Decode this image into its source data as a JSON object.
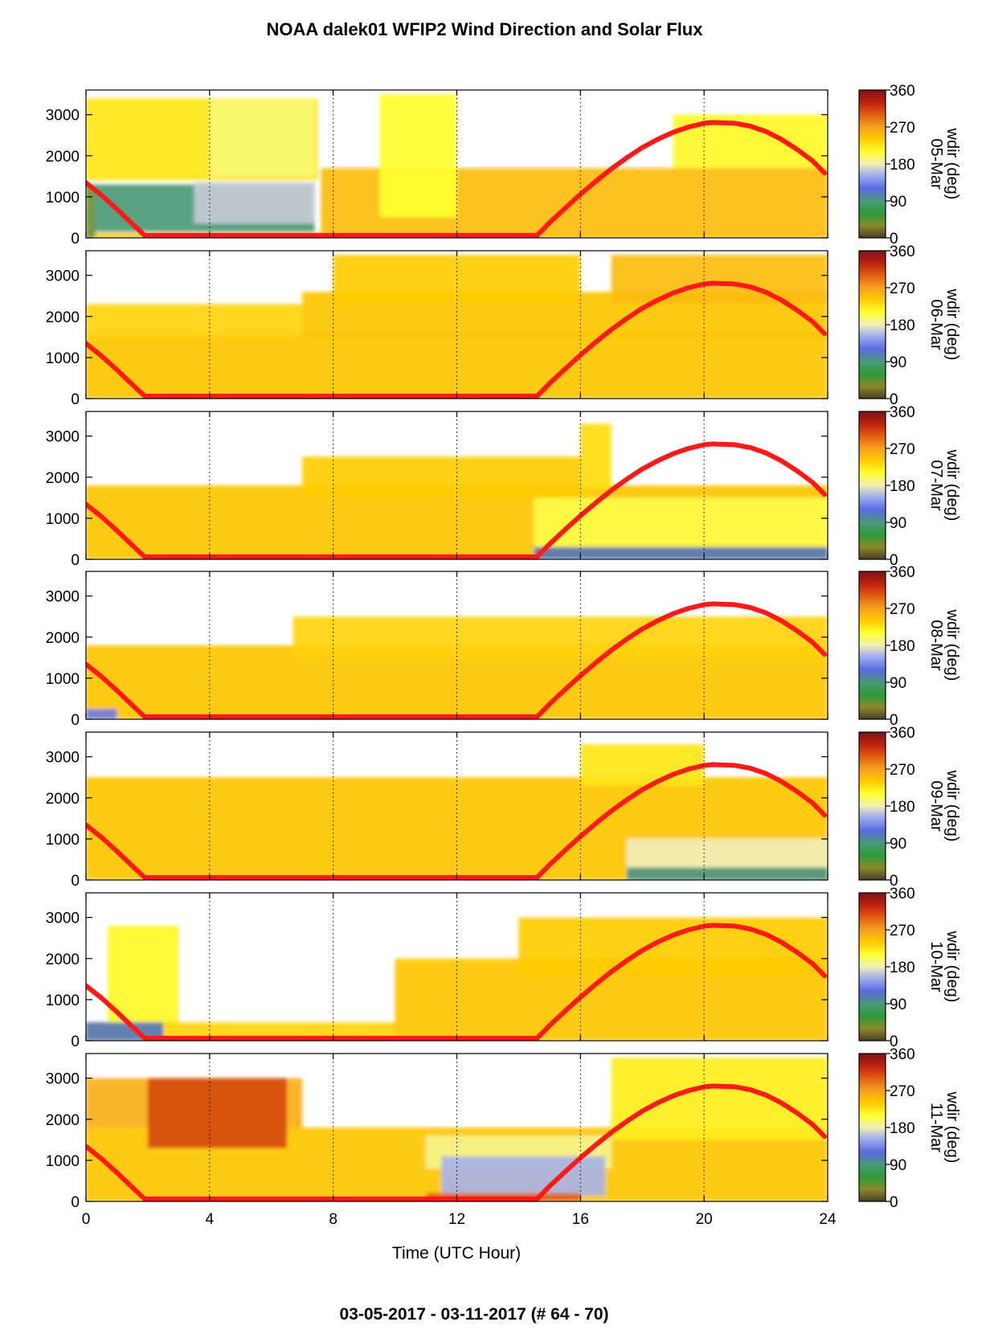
{
  "chart_data": {
    "type": "heatmap",
    "title": "NOAA dalek01 WFIP2 Wind Direction and Solar Flux",
    "footer": "03-05-2017 - 03-11-2017    (# 64 - 70)",
    "xlabel": "Time (UTC Hour)",
    "xlim": [
      0,
      24
    ],
    "xticks": [
      "0",
      "4",
      "8",
      "12",
      "16",
      "20",
      "24"
    ],
    "xtick_values": [
      0,
      4,
      8,
      12,
      16,
      20,
      24
    ],
    "ylim": [
      0,
      3600
    ],
    "yticks": [
      "0",
      "1000",
      "2000",
      "3000"
    ],
    "ytick_values": [
      0,
      1000,
      2000,
      3000
    ],
    "vertical_gridlines": "dotted at 4, 8, 12, 16, 20",
    "colorbar": {
      "label": "wdir (deg)",
      "ticks": [
        "0",
        "90",
        "180",
        "270",
        "360"
      ],
      "tick_values": [
        0,
        90,
        180,
        270,
        360
      ],
      "stops": [
        "#4a3f2a",
        "#8a8a2a",
        "#2e9a3a",
        "#4a9a78",
        "#5a6ae0",
        "#9aa8f0",
        "#f0f0b8",
        "#ffff30",
        "#ffcc00",
        "#f5a020",
        "#e06010",
        "#c02010",
        "#7a1515"
      ]
    },
    "solar_flux_color": "#ff1a1a",
    "solar_flux_curve": {
      "hour": [
        0,
        0.5,
        1,
        1.5,
        1.9,
        2.5,
        4,
        6,
        8,
        10,
        12,
        14,
        14.6,
        15,
        15.5,
        16,
        16.5,
        17,
        17.5,
        18,
        18.5,
        19,
        19.5,
        20,
        20.3,
        21,
        21.5,
        22,
        22.5,
        23,
        23.5,
        23.9
      ],
      "value": [
        1340,
        1040,
        700,
        340,
        60,
        60,
        60,
        60,
        60,
        60,
        60,
        60,
        60,
        370,
        720,
        1060,
        1380,
        1680,
        1950,
        2200,
        2400,
        2570,
        2700,
        2790,
        2810,
        2790,
        2720,
        2590,
        2400,
        2160,
        1880,
        1580
      ]
    },
    "panels": [
      {
        "date": "05-Mar",
        "layers": [
          {
            "t": [
              0,
              24
            ],
            "h": [
              0,
              120
            ],
            "wdir": 245
          },
          {
            "t": [
              0,
              0.3
            ],
            "h": [
              0,
              1300
            ],
            "wdir": 40
          },
          {
            "t": [
              0.3,
              7.4
            ],
            "h": [
              150,
              1300
            ],
            "wdir": 90
          },
          {
            "t": [
              3.5,
              7.4
            ],
            "h": [
              350,
              1350
            ],
            "wdir": 165
          },
          {
            "t": [
              0,
              7.5
            ],
            "h": [
              1400,
              3400
            ],
            "wdir": 225
          },
          {
            "t": [
              4,
              7.4
            ],
            "h": [
              1500,
              3400
            ],
            "wdir": 195
          },
          {
            "t": [
              7.6,
              24
            ],
            "h": [
              0,
              1700
            ],
            "wdir": 250
          },
          {
            "t": [
              9.5,
              12
            ],
            "h": [
              500,
              3500
            ],
            "wdir": 210
          },
          {
            "t": [
              19,
              24
            ],
            "h": [
              1700,
              3000
            ],
            "wdir": 215
          }
        ]
      },
      {
        "date": "06-Mar",
        "layers": [
          {
            "t": [
              0,
              24
            ],
            "h": [
              0,
              1600
            ],
            "wdir": 245
          },
          {
            "t": [
              0,
              7
            ],
            "h": [
              1500,
              2300
            ],
            "wdir": 235
          },
          {
            "t": [
              7,
              24
            ],
            "h": [
              1500,
              2600
            ],
            "wdir": 245
          },
          {
            "t": [
              8,
              16
            ],
            "h": [
              2300,
              3500
            ],
            "wdir": 240
          },
          {
            "t": [
              17,
              24
            ],
            "h": [
              2300,
              3500
            ],
            "wdir": 250
          }
        ]
      },
      {
        "date": "07-Mar",
        "layers": [
          {
            "t": [
              0,
              24
            ],
            "h": [
              0,
              1800
            ],
            "wdir": 245
          },
          {
            "t": [
              7,
              16
            ],
            "h": [
              1500,
              2500
            ],
            "wdir": 240
          },
          {
            "t": [
              14.5,
              24
            ],
            "h": [
              300,
              1500
            ],
            "wdir": 205
          },
          {
            "t": [
              14.5,
              24
            ],
            "h": [
              0,
              300
            ],
            "wdir": 110
          },
          {
            "t": [
              16,
              17
            ],
            "h": [
              1700,
              3300
            ],
            "wdir": 230
          }
        ]
      },
      {
        "date": "08-Mar",
        "layers": [
          {
            "t": [
              0,
              24
            ],
            "h": [
              0,
              1800
            ],
            "wdir": 245
          },
          {
            "t": [
              6.7,
              24
            ],
            "h": [
              1500,
              2500
            ],
            "wdir": 235
          },
          {
            "t": [
              0,
              1
            ],
            "h": [
              0,
              250
            ],
            "wdir": 130
          }
        ]
      },
      {
        "date": "09-Mar",
        "layers": [
          {
            "t": [
              0,
              24
            ],
            "h": [
              0,
              2500
            ],
            "wdir": 245
          },
          {
            "t": [
              16,
              20
            ],
            "h": [
              2300,
              3300
            ],
            "wdir": 225
          },
          {
            "t": [
              17.5,
              24
            ],
            "h": [
              300,
              1000
            ],
            "wdir": 180
          },
          {
            "t": [
              17.5,
              24
            ],
            "h": [
              0,
              300
            ],
            "wdir": 95
          }
        ]
      },
      {
        "date": "10-Mar",
        "layers": [
          {
            "t": [
              0.7,
              3
            ],
            "h": [
              300,
              2800
            ],
            "wdir": 215
          },
          {
            "t": [
              0,
              10
            ],
            "h": [
              0,
              450
            ],
            "wdir": 235
          },
          {
            "t": [
              0,
              2.5
            ],
            "h": [
              0,
              450
            ],
            "wdir": 110
          },
          {
            "t": [
              10,
              24
            ],
            "h": [
              0,
              2000
            ],
            "wdir": 245
          },
          {
            "t": [
              14,
              24
            ],
            "h": [
              1600,
              3000
            ],
            "wdir": 240
          }
        ]
      },
      {
        "date": "11-Mar",
        "layers": [
          {
            "t": [
              0,
              24
            ],
            "h": [
              0,
              1800
            ],
            "wdir": 245
          },
          {
            "t": [
              0,
              7
            ],
            "h": [
              1800,
              3000
            ],
            "wdir": 260
          },
          {
            "t": [
              2,
              6.5
            ],
            "h": [
              1300,
              3000
            ],
            "wdir": 310
          },
          {
            "t": [
              11,
              17
            ],
            "h": [
              800,
              1600
            ],
            "wdir": 190
          },
          {
            "t": [
              11.5,
              16.8
            ],
            "h": [
              150,
              1100
            ],
            "wdir": 155
          },
          {
            "t": [
              11,
              16
            ],
            "h": [
              0,
              200
            ],
            "wdir": 300
          },
          {
            "t": [
              17,
              24
            ],
            "h": [
              1500,
              3500
            ],
            "wdir": 220
          }
        ]
      }
    ]
  }
}
